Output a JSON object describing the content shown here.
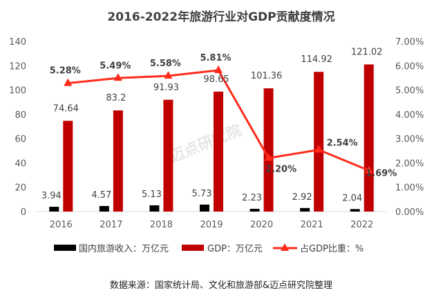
{
  "chart_data": {
    "type": "bar+line",
    "title": "2016-2022年旅游行业对GDP贡献度情况",
    "categories": [
      "2016",
      "2017",
      "2018",
      "2019",
      "2020",
      "2021",
      "2022"
    ],
    "series": [
      {
        "name": "国内旅游收入：万亿元",
        "type": "bar",
        "axis": "left",
        "color": "#000000",
        "values": [
          3.94,
          4.57,
          5.13,
          5.73,
          2.23,
          2.92,
          2.04
        ],
        "labels": [
          "3.94",
          "4.57",
          "5.13",
          "5.73",
          "2.23",
          "2.92",
          "2.04"
        ]
      },
      {
        "name": "GDP：万亿元",
        "type": "bar",
        "axis": "left",
        "color": "#c00000",
        "values": [
          74.64,
          83.2,
          91.93,
          98.65,
          101.36,
          114.92,
          121.02
        ],
        "labels": [
          "74.64",
          "83.2",
          "91.93",
          "98.65",
          "101.36",
          "114.92",
          "121.02"
        ]
      },
      {
        "name": "占GDP比重：%",
        "type": "line",
        "axis": "right",
        "color": "#ff2a1a",
        "marker": "triangle",
        "values": [
          5.28,
          5.49,
          5.58,
          5.81,
          2.2,
          2.54,
          1.69
        ],
        "labels": [
          "5.28%",
          "5.49%",
          "5.58%",
          "5.81%",
          "2.20%",
          "2.54%",
          "1.69%"
        ]
      }
    ],
    "left_axis": {
      "range": [
        0,
        140
      ],
      "ticks": [
        "0",
        "20",
        "40",
        "60",
        "80",
        "100",
        "120",
        "140"
      ]
    },
    "right_axis": {
      "range": [
        0,
        7
      ],
      "ticks": [
        "0.00%",
        "1.00%",
        "2.00%",
        "3.00%",
        "4.00%",
        "5.00%",
        "6.00%",
        "7.00%"
      ]
    },
    "grid": false,
    "legend_position": "bottom"
  },
  "source": "数据来源：国家统计局、文化和旅游部&迈点研究院整理",
  "watermark": "迈点研究院"
}
